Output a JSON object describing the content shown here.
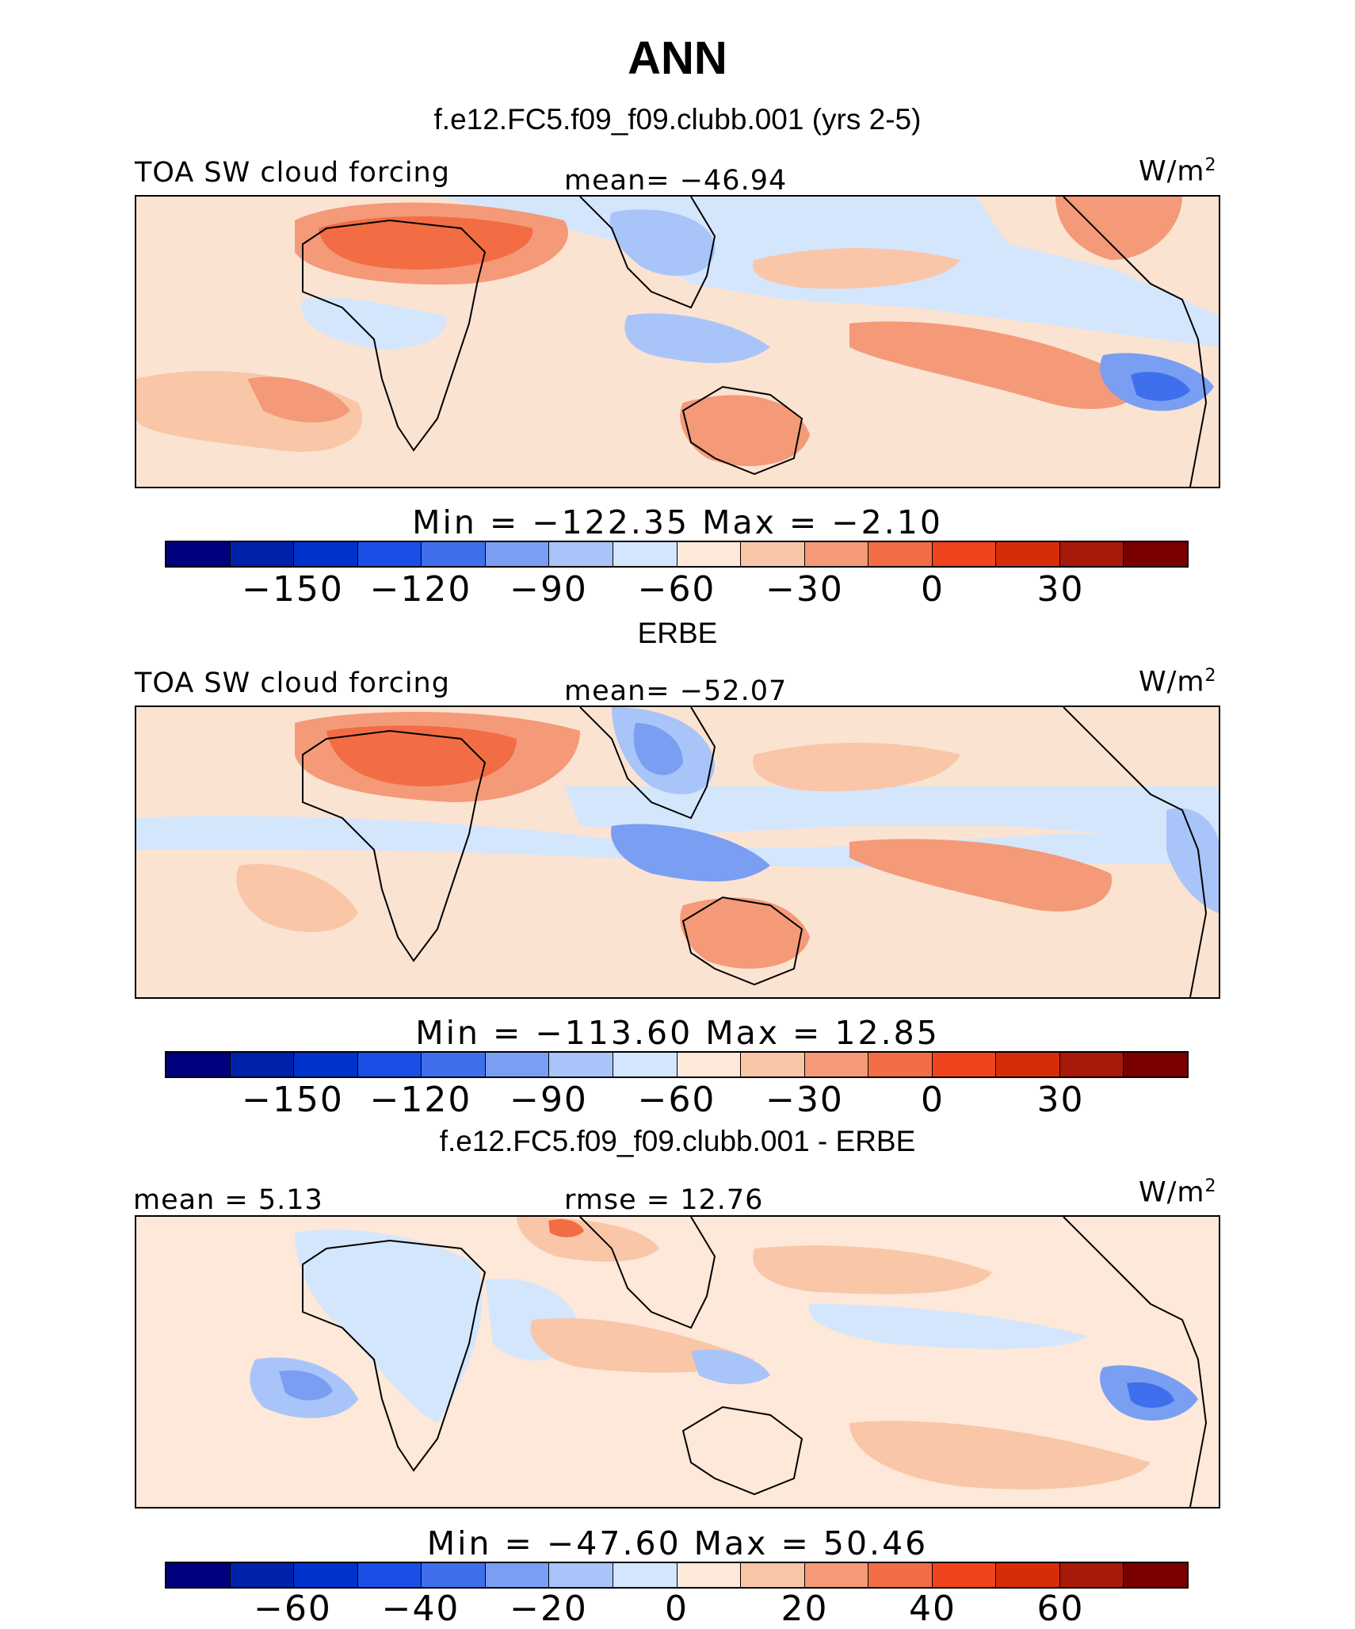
{
  "figure": {
    "title": "ANN",
    "colors": [
      "#00007f",
      "#0022aa",
      "#0033cc",
      "#1a4fe6",
      "#3f6fec",
      "#7a9ef2",
      "#a9c4f8",
      "#d4e6fc",
      "#fde8d9",
      "#f9c6a8",
      "#f49a78",
      "#f26d43",
      "#f0431e",
      "#d72c0a",
      "#a8190a",
      "#7a0000"
    ]
  },
  "panels": [
    {
      "id": "model",
      "subtitle": "f.e12.FC5.f09_f09.clubb.001 (yrs 2-5)",
      "left_label": "TOA SW cloud forcing",
      "center_label": "mean= −46.94",
      "units": "W/m",
      "units_sup": "2",
      "minmax": "Min = −122.35 Max = −2.10",
      "ticks": [
        "−150",
        "−120",
        "−90",
        "−60",
        "−30",
        "0",
        "30"
      ]
    },
    {
      "id": "obs",
      "subtitle": "ERBE",
      "left_label": "TOA SW cloud forcing",
      "center_label": "mean= −52.07",
      "units": "W/m",
      "units_sup": "2",
      "minmax": "Min = −113.60 Max = 12.85",
      "ticks": [
        "−150",
        "−120",
        "−90",
        "−60",
        "−30",
        "0",
        "30"
      ]
    },
    {
      "id": "diff",
      "subtitle": "f.e12.FC5.f09_f09.clubb.001 - ERBE",
      "left_label": "mean = 5.13",
      "center_label": "rmse = 12.76",
      "units": "W/m",
      "units_sup": "2",
      "minmax": "Min = −47.60 Max = 50.46",
      "ticks": [
        "−60",
        "−40",
        "−20",
        "0",
        "20",
        "40",
        "60"
      ]
    }
  ]
}
